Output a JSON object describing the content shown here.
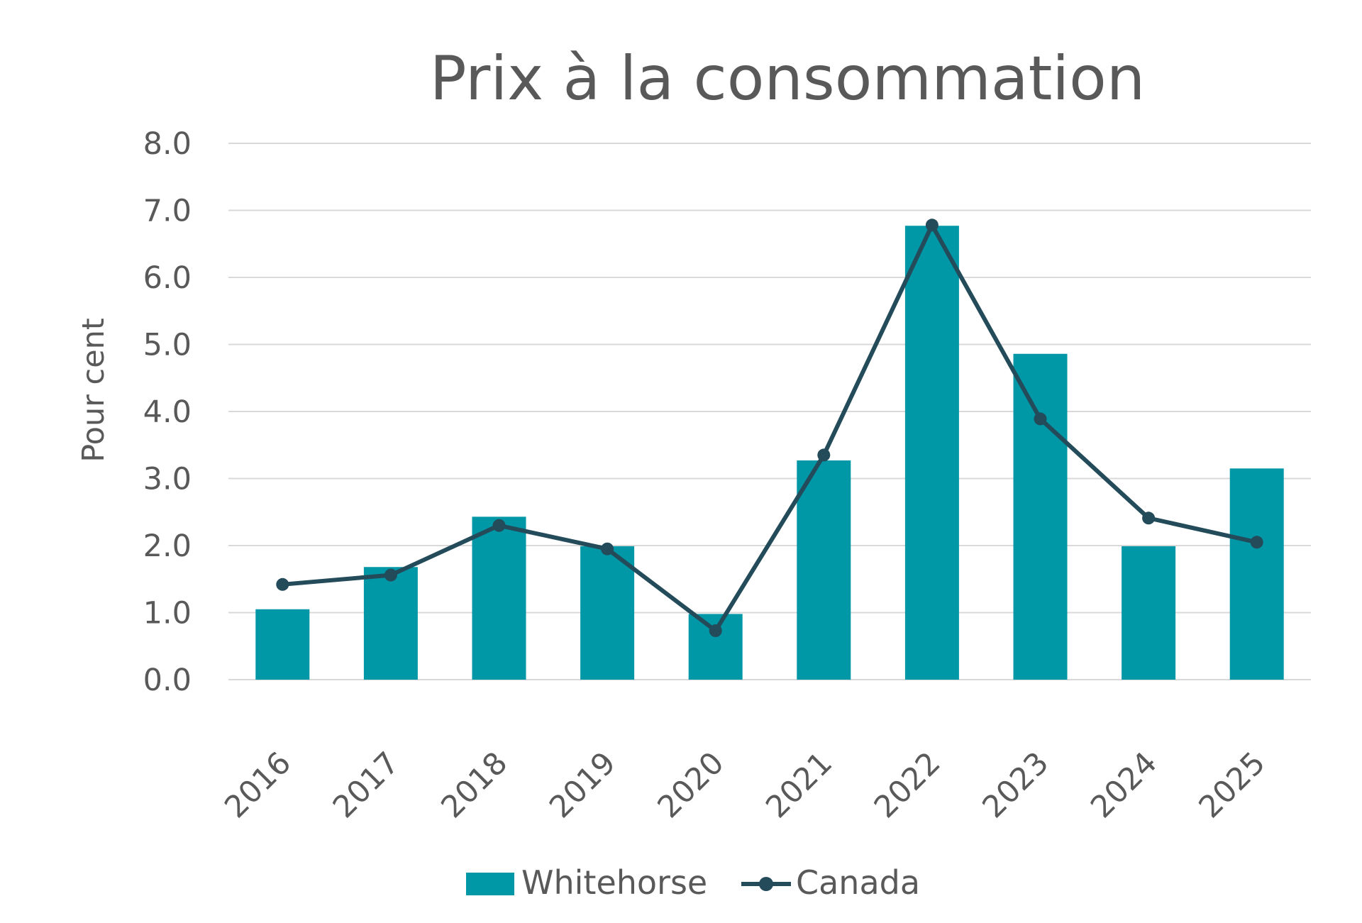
{
  "chart_data": {
    "type": "bar",
    "title": "Prix à la consommation",
    "xlabel": "",
    "ylabel": "Pour cent",
    "ylim": [
      0,
      8
    ],
    "yticks": [
      "0.0",
      "1.0",
      "2.0",
      "3.0",
      "4.0",
      "5.0",
      "6.0",
      "7.0",
      "8.0"
    ],
    "categories": [
      "2016",
      "2017",
      "2018",
      "2019",
      "2020",
      "2021",
      "2022",
      "2023",
      "2024",
      "2025"
    ],
    "series": [
      {
        "name": "Whitehorse",
        "type": "bar",
        "color": "#0097a7",
        "values": [
          1.05,
          1.68,
          2.43,
          1.99,
          0.98,
          3.27,
          6.77,
          4.86,
          1.99,
          3.15
        ]
      },
      {
        "name": "Canada",
        "type": "line",
        "color": "#234b5a",
        "values": [
          1.42,
          1.56,
          2.3,
          1.95,
          0.73,
          3.35,
          6.78,
          3.89,
          2.41,
          2.05
        ]
      }
    ],
    "grid": true,
    "legend": "bottom"
  }
}
